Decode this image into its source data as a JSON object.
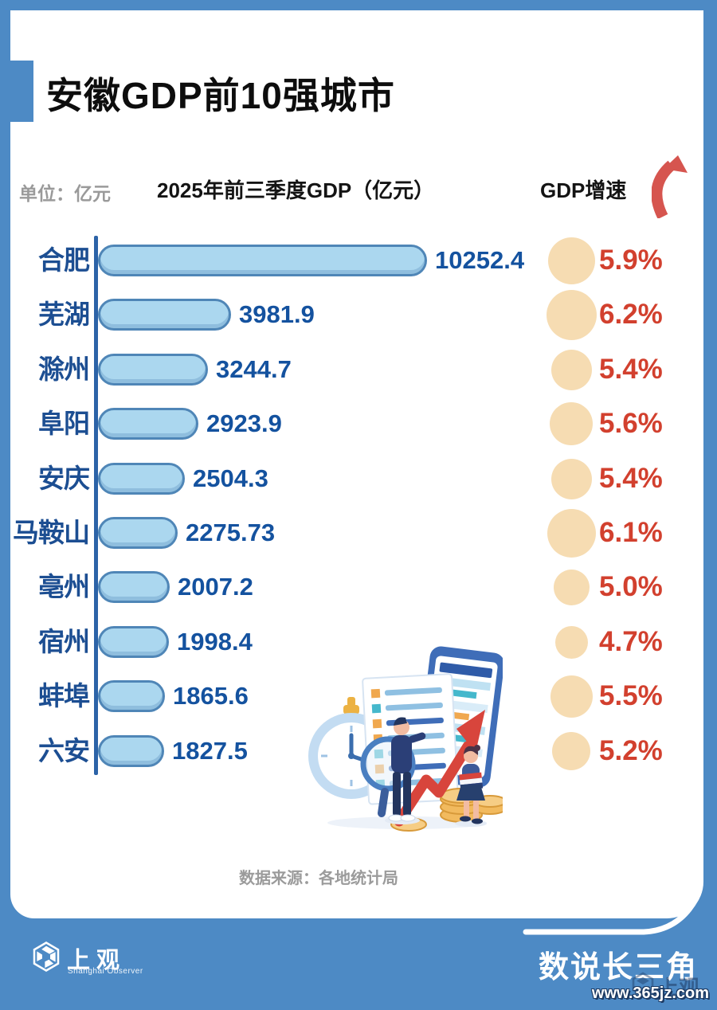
{
  "page": {
    "title": "安徽GDP前10强城市",
    "unit_label": "单位：亿元",
    "gdp_header": "2025年前三季度GDP（亿元）",
    "growth_header": "GDP增速",
    "source": "数据来源：各地统计局"
  },
  "chart_data": {
    "type": "bar",
    "orientation": "horizontal",
    "title": "安徽GDP前10强城市",
    "unit": "亿元",
    "categories": [
      "合肥",
      "芜湖",
      "滁州",
      "阜阳",
      "安庆",
      "马鞍山",
      "亳州",
      "宿州",
      "蚌埠",
      "六安"
    ],
    "series": [
      {
        "name": "2025年前三季度GDP（亿元）",
        "unit": "亿元",
        "values": [
          10252.4,
          3981.9,
          3244.7,
          2923.9,
          2504.3,
          2275.73,
          2007.2,
          1998.4,
          1865.6,
          1827.5
        ]
      },
      {
        "name": "GDP增速",
        "unit": "%",
        "values": [
          5.9,
          6.2,
          5.4,
          5.6,
          5.4,
          6.1,
          5.0,
          4.7,
          5.5,
          5.2
        ]
      }
    ],
    "rows": [
      {
        "city": "合肥",
        "gdp": "10252.4",
        "growth": "5.9%"
      },
      {
        "city": "芜湖",
        "gdp": "3981.9",
        "growth": "6.2%"
      },
      {
        "city": "滁州",
        "gdp": "3244.7",
        "growth": "5.4%"
      },
      {
        "city": "阜阳",
        "gdp": "2923.9",
        "growth": "5.6%"
      },
      {
        "city": "安庆",
        "gdp": "2504.3",
        "growth": "5.4%"
      },
      {
        "city": "马鞍山",
        "gdp": "2275.73",
        "growth": "6.1%"
      },
      {
        "city": "亳州",
        "gdp": "2007.2",
        "growth": "5.0%"
      },
      {
        "city": "宿州",
        "gdp": "1998.4",
        "growth": "4.7%"
      },
      {
        "city": "蚌埠",
        "gdp": "1865.6",
        "growth": "5.5%"
      },
      {
        "city": "六安",
        "gdp": "1827.5",
        "growth": "5.2%"
      }
    ],
    "grid": false,
    "legend_position": "none",
    "bar_value_labels": true,
    "growth_bubble_size": "proportional to growth rate"
  },
  "footer": {
    "logo_text": "上观",
    "logo_subtext": "Shanghai Observer",
    "series_title": "数说长三角",
    "watermark": "www.365jz.com"
  },
  "colors": {
    "frame_blue": "#4d8ac5",
    "bar_fill": "#abd7ef",
    "bar_border": "#4f86b7",
    "axis_blue": "#2c63a7",
    "city_label_navy": "#1c4e92",
    "value_blue": "#14529f",
    "growth_red": "#d2402e",
    "bubble_beige": "#f6dcb2",
    "unit_gray": "#9a9a9a",
    "title_black": "#0d0d0d"
  }
}
